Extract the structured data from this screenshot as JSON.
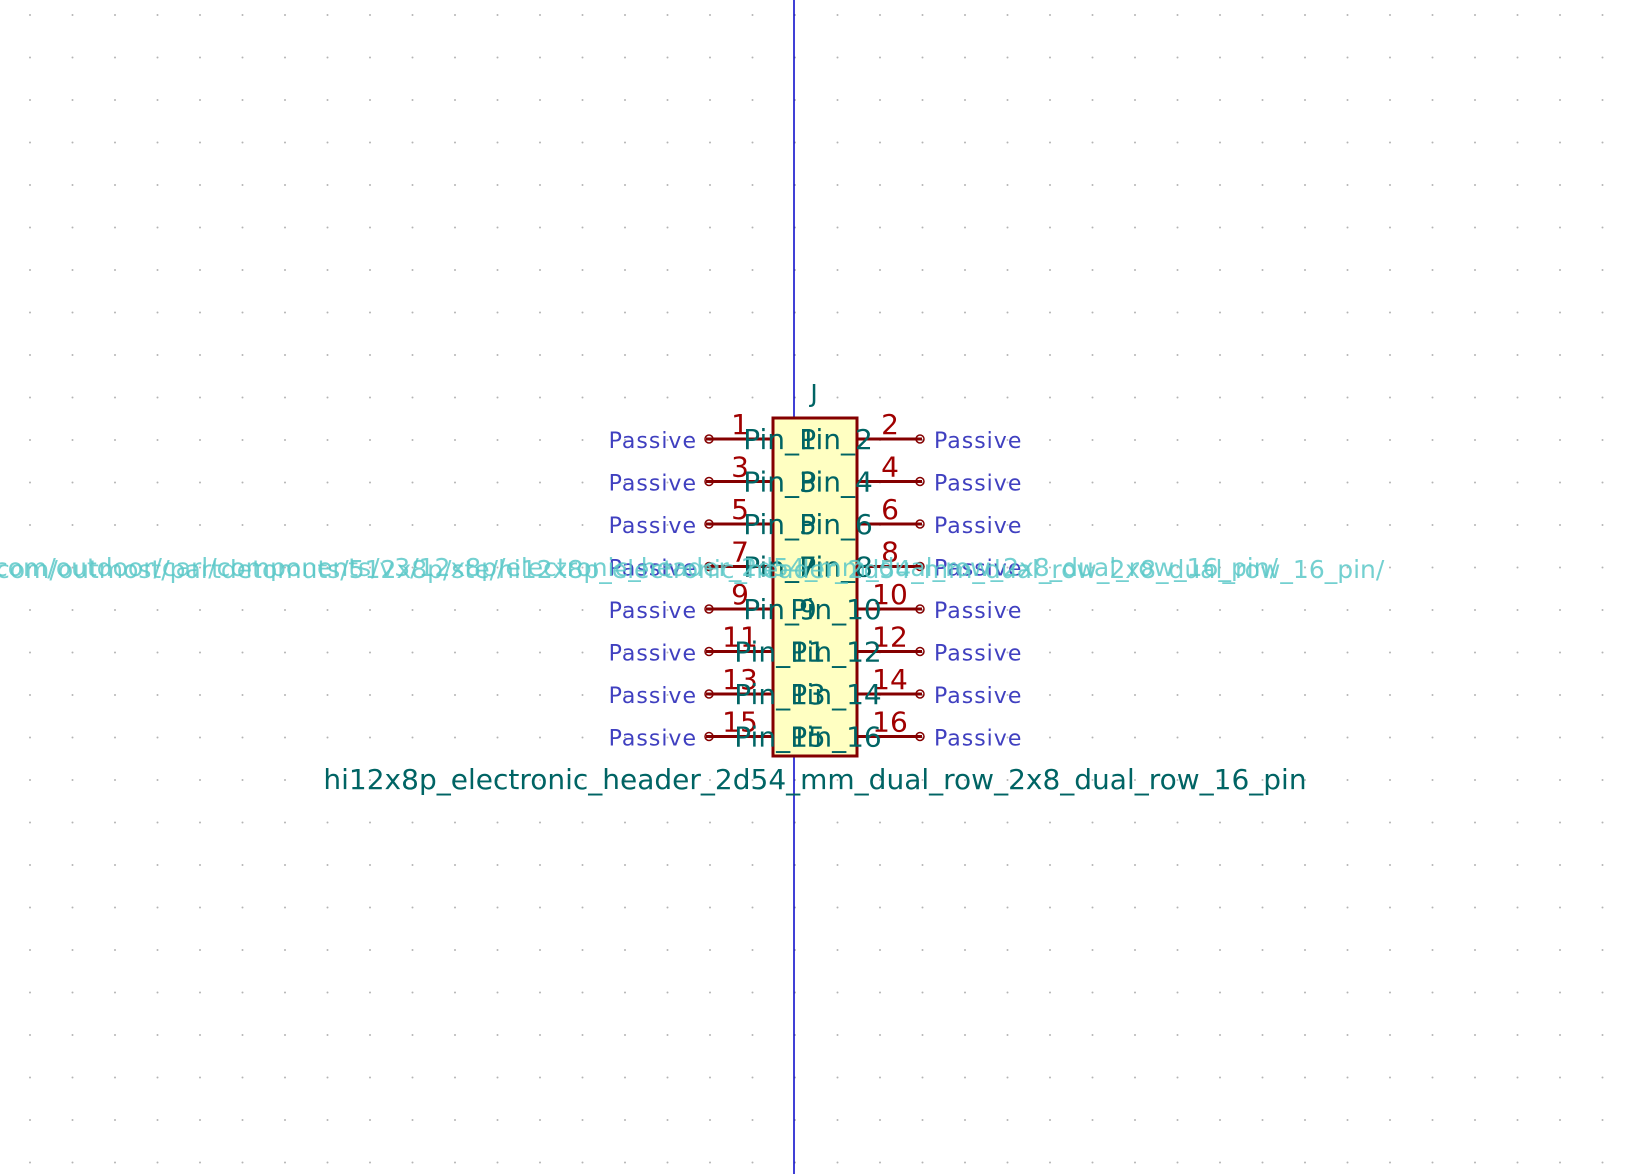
{
  "schematic": {
    "reference": "J",
    "value": "hi12x8p_electronic_header_2d54_mm_dual_row_2x8_dual_row_16_pin",
    "footprint_text_a": "com/outdoor/carl/components/v3/12x8p/electronic_header_2d54_mm_dual_row_2x8_dual_row_16_pin/",
    "footprint_text_b": "com/outmost/partdetomuts/512x8p/ste/hi12x8p_electronic_header_2d54_mm_dual_row_2x8_dual_row_16_pin/",
    "pins": [
      {
        "number": "1",
        "name": "Pin_1",
        "type": "Passive",
        "side": "left"
      },
      {
        "number": "2",
        "name": "Pin_2",
        "type": "Passive",
        "side": "right"
      },
      {
        "number": "3",
        "name": "Pin_3",
        "type": "Passive",
        "side": "left"
      },
      {
        "number": "4",
        "name": "Pin_4",
        "type": "Passive",
        "side": "right"
      },
      {
        "number": "5",
        "name": "Pin_5",
        "type": "Passive",
        "side": "left"
      },
      {
        "number": "6",
        "name": "Pin_6",
        "type": "Passive",
        "side": "right"
      },
      {
        "number": "7",
        "name": "Pin_7",
        "type": "Passive",
        "side": "left"
      },
      {
        "number": "8",
        "name": "Pin_8",
        "type": "Passive",
        "side": "right"
      },
      {
        "number": "9",
        "name": "Pin_9",
        "type": "Passive",
        "side": "left"
      },
      {
        "number": "10",
        "name": "Pin_10",
        "type": "Passive",
        "side": "right"
      },
      {
        "number": "11",
        "name": "Pin_11",
        "type": "Passive",
        "side": "left"
      },
      {
        "number": "12",
        "name": "Pin_12",
        "type": "Passive",
        "side": "right"
      },
      {
        "number": "13",
        "name": "Pin_13",
        "type": "Passive",
        "side": "left"
      },
      {
        "number": "14",
        "name": "Pin_14",
        "type": "Passive",
        "side": "right"
      },
      {
        "number": "15",
        "name": "Pin_15",
        "type": "Passive",
        "side": "left"
      },
      {
        "number": "16",
        "name": "Pin_16",
        "type": "Passive",
        "side": "right"
      }
    ],
    "colors": {
      "body_fill": "#ffffc2",
      "body_stroke": "#840000",
      "pin_line": "#840000",
      "pin_number": "#a00000",
      "pin_name": "#006464",
      "pin_type": "#4040c0",
      "value_text": "#006464",
      "footprint_text": "#5bc8c8",
      "axis": "#0000c8",
      "grid_dot": "#b4b4b4"
    }
  }
}
